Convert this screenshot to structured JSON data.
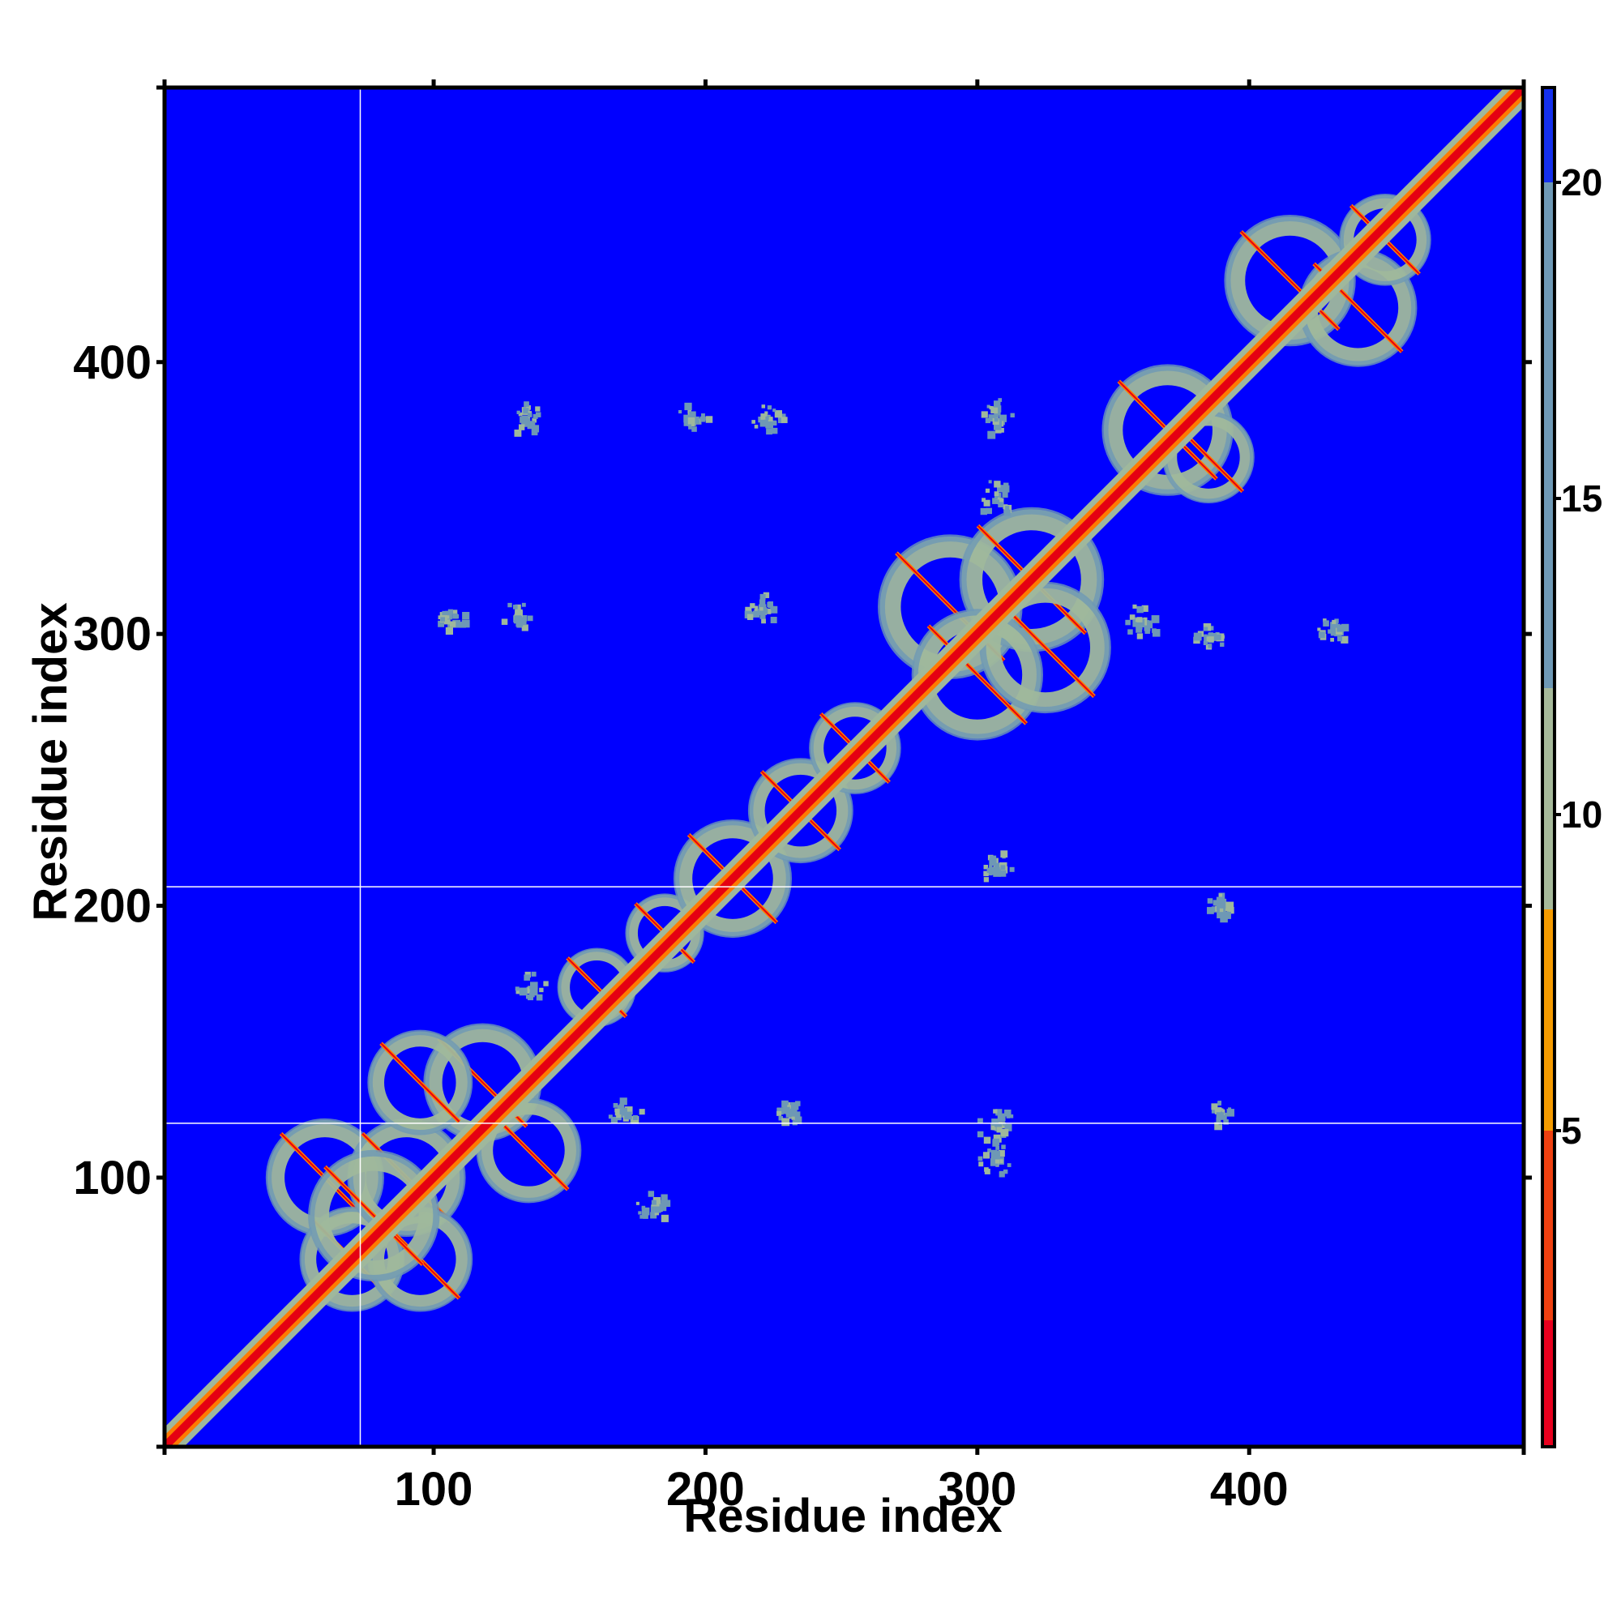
{
  "chart_data": {
    "type": "heatmap",
    "title": "",
    "xlabel": "Residue index",
    "ylabel": "Residue index",
    "x_ticks": [
      100,
      200,
      300,
      400
    ],
    "y_ticks": [
      100,
      200,
      300,
      400
    ],
    "xlim": [
      1,
      501
    ],
    "ylim": [
      1,
      501
    ],
    "colorbar": {
      "ticks": [
        5,
        10,
        15,
        20
      ],
      "range": [
        0,
        21.5
      ],
      "bands": [
        {
          "from": 0,
          "to": 2,
          "color": "#e8001e"
        },
        {
          "from": 2,
          "to": 5,
          "color": "#ef4010"
        },
        {
          "from": 5,
          "to": 8.5,
          "color": "#f59b00"
        },
        {
          "from": 8.5,
          "to": 12,
          "color": "#a6b99a"
        },
        {
          "from": 12,
          "to": 20,
          "color": "#6e98b5"
        },
        {
          "from": 20,
          "to": 21.5,
          "color": "#1530ee"
        }
      ]
    },
    "colors": {
      "background": "#0000ff",
      "diagonal_core": "#e50012",
      "diagonal_edge": "#ff7a00",
      "near_contact": "#9fb89c",
      "mid_contact": "#6e98b5",
      "grid_lines": "#ffffff"
    },
    "reference_lines": {
      "vertical_x": [
        73
      ],
      "horizontal_y": [
        120,
        207
      ]
    },
    "contact_blocks": [
      {
        "x": 60,
        "y": 100,
        "r": 18
      },
      {
        "x": 70,
        "y": 70,
        "r": 16
      },
      {
        "x": 90,
        "y": 100,
        "r": 18
      },
      {
        "x": 95,
        "y": 70,
        "r": 16
      },
      {
        "x": 78,
        "y": 86,
        "r": 20
      },
      {
        "x": 118,
        "y": 135,
        "r": 18
      },
      {
        "x": 95,
        "y": 135,
        "r": 16
      },
      {
        "x": 135,
        "y": 110,
        "r": 16
      },
      {
        "x": 160,
        "y": 170,
        "r": 12
      },
      {
        "x": 185,
        "y": 190,
        "r": 12
      },
      {
        "x": 210,
        "y": 210,
        "r": 18
      },
      {
        "x": 235,
        "y": 235,
        "r": 16
      },
      {
        "x": 255,
        "y": 258,
        "r": 14
      },
      {
        "x": 290,
        "y": 310,
        "r": 22
      },
      {
        "x": 320,
        "y": 320,
        "r": 22
      },
      {
        "x": 300,
        "y": 285,
        "r": 20
      },
      {
        "x": 325,
        "y": 295,
        "r": 20
      },
      {
        "x": 370,
        "y": 375,
        "r": 20
      },
      {
        "x": 385,
        "y": 365,
        "r": 14
      },
      {
        "x": 415,
        "y": 430,
        "r": 20
      },
      {
        "x": 440,
        "y": 420,
        "r": 18
      },
      {
        "x": 450,
        "y": 445,
        "r": 14
      }
    ],
    "off_diagonal_clusters": [
      {
        "x": 105,
        "y": 307,
        "r": 6
      },
      {
        "x": 130,
        "y": 307,
        "r": 6
      },
      {
        "x": 220,
        "y": 310,
        "r": 6
      },
      {
        "x": 133,
        "y": 380,
        "r": 6
      },
      {
        "x": 195,
        "y": 380,
        "r": 6
      },
      {
        "x": 222,
        "y": 380,
        "r": 6
      },
      {
        "x": 306,
        "y": 380,
        "r": 7
      },
      {
        "x": 306,
        "y": 350,
        "r": 7
      },
      {
        "x": 360,
        "y": 305,
        "r": 7
      },
      {
        "x": 385,
        "y": 300,
        "r": 6
      },
      {
        "x": 430,
        "y": 302,
        "r": 5
      },
      {
        "x": 306,
        "y": 120,
        "r": 7
      },
      {
        "x": 306,
        "y": 107,
        "r": 6
      },
      {
        "x": 388,
        "y": 200,
        "r": 5
      },
      {
        "x": 388,
        "y": 125,
        "r": 5
      },
      {
        "x": 306,
        "y": 215,
        "r": 6
      },
      {
        "x": 170,
        "y": 125,
        "r": 6
      },
      {
        "x": 135,
        "y": 170,
        "r": 6
      },
      {
        "x": 230,
        "y": 125,
        "r": 5
      },
      {
        "x": 180,
        "y": 90,
        "r": 6
      }
    ]
  }
}
